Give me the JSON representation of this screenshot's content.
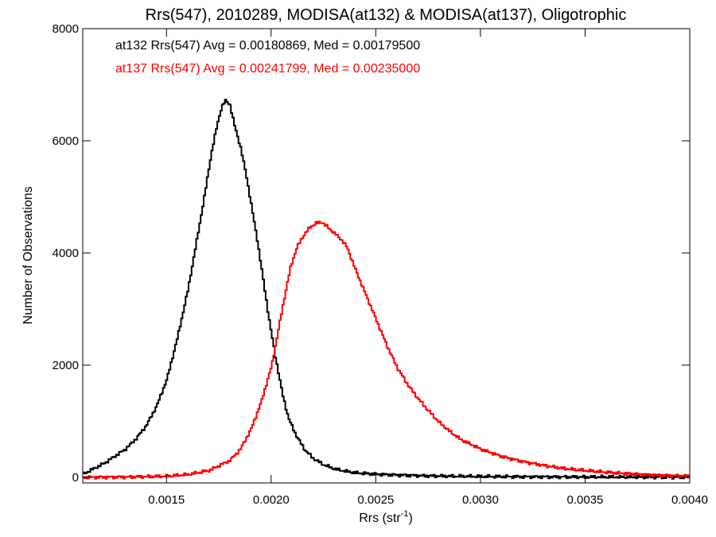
{
  "chart_data": {
    "type": "line",
    "title": "Rrs(547), 2010289, MODISA(at132) & MODISA(at137), Oligotrophic",
    "xlabel": "Rrs (str",
    "xlabel_sup": "-1",
    "xlabel_close": ")",
    "ylabel": "Number of Observations",
    "xlim": [
      0.0011,
      0.004
    ],
    "ylim": [
      -100,
      8000
    ],
    "xticks": [
      0.0015,
      0.002,
      0.0025,
      0.003,
      0.0035,
      0.004
    ],
    "xtick_labels": [
      "0.0015",
      "0.0020",
      "0.0025",
      "0.0030",
      "0.0035",
      "0.0040"
    ],
    "yticks": [
      0,
      2000,
      4000,
      6000,
      8000
    ],
    "ytick_labels": [
      "0",
      "2000",
      "4000",
      "6000",
      "8000"
    ],
    "grid": false,
    "legend_placement": "top-left",
    "series": [
      {
        "name": "at132 Rrs(547) Avg = 0.00180869, Med = 0.00179500",
        "color": "#000000",
        "x": [
          0.0011,
          0.0012,
          0.0013,
          0.00135,
          0.0014,
          0.00145,
          0.0015,
          0.00155,
          0.0016,
          0.00165,
          0.00168,
          0.00171,
          0.00174,
          0.00176,
          0.00178,
          0.0018,
          0.00182,
          0.00185,
          0.00188,
          0.0019,
          0.00193,
          0.00196,
          0.00199,
          0.00202,
          0.00205,
          0.00208,
          0.00212,
          0.00216,
          0.0022,
          0.00225,
          0.0023,
          0.00235,
          0.0024,
          0.0025,
          0.0026,
          0.00275,
          0.0029,
          0.0031,
          0.0033,
          0.0036,
          0.004
        ],
        "y": [
          60,
          250,
          500,
          680,
          920,
          1270,
          1760,
          2500,
          3350,
          4400,
          5050,
          5750,
          6300,
          6600,
          6720,
          6650,
          6300,
          5900,
          5350,
          4900,
          4250,
          3500,
          2750,
          2100,
          1500,
          1050,
          720,
          480,
          330,
          220,
          150,
          110,
          80,
          55,
          40,
          25,
          18,
          12,
          8,
          5,
          3
        ]
      },
      {
        "name": "at137 Rrs(547) Avg = 0.00241799, Med = 0.00235000",
        "color": "#ff0000",
        "x": [
          0.0011,
          0.0013,
          0.0015,
          0.0016,
          0.0017,
          0.0018,
          0.00185,
          0.0019,
          0.00195,
          0.002,
          0.00203,
          0.00206,
          0.00209,
          0.00212,
          0.00215,
          0.00218,
          0.00221,
          0.00224,
          0.00227,
          0.0023,
          0.00233,
          0.00236,
          0.0024,
          0.00245,
          0.0025,
          0.00255,
          0.0026,
          0.00265,
          0.0027,
          0.00275,
          0.0028,
          0.00285,
          0.0029,
          0.003,
          0.0031,
          0.0032,
          0.0033,
          0.0034,
          0.0035,
          0.0036,
          0.0037,
          0.0038,
          0.0039,
          0.004
        ],
        "y": [
          0,
          5,
          20,
          50,
          120,
          300,
          500,
          850,
          1350,
          2000,
          2600,
          3200,
          3750,
          4100,
          4300,
          4450,
          4530,
          4550,
          4450,
          4350,
          4250,
          4100,
          3700,
          3250,
          2800,
          2350,
          1950,
          1650,
          1400,
          1180,
          980,
          820,
          680,
          500,
          370,
          280,
          210,
          155,
          120,
          90,
          65,
          45,
          30,
          20
        ]
      }
    ]
  }
}
